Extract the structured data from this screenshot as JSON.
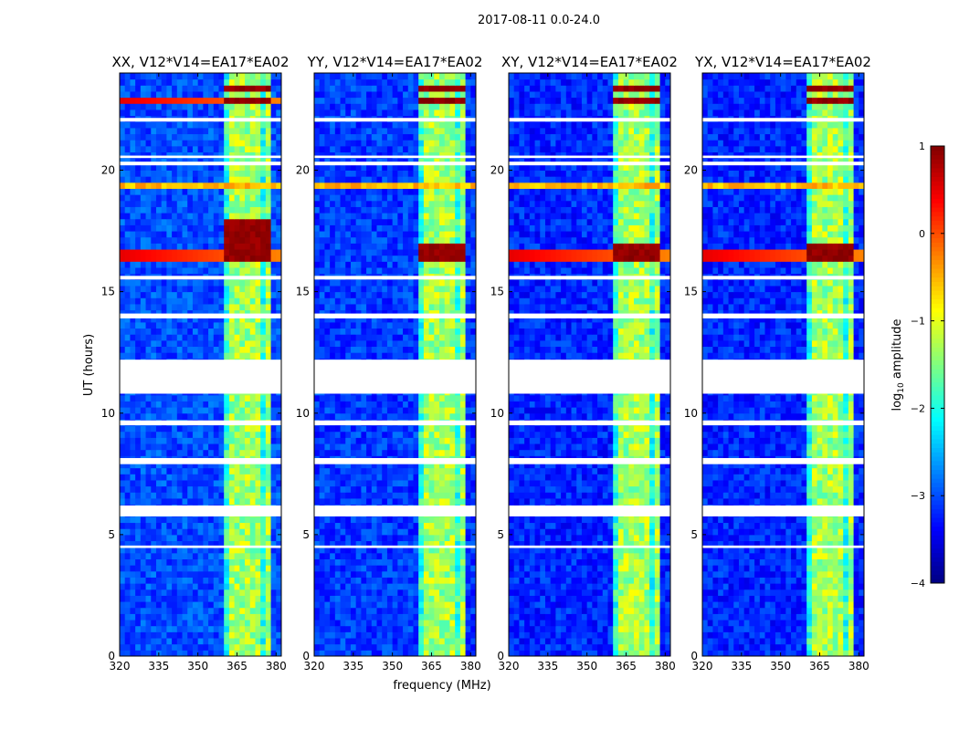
{
  "suptitle": "2017-08-11 0.0-24.0",
  "ylabel": "UT (hours)",
  "xlabel": "frequency (MHz)",
  "colorbar": {
    "label": "log",
    "label_sub": "10",
    "label_rest": " amplitude",
    "range": [
      -4,
      1
    ],
    "ticks": [
      1,
      0,
      -1,
      -2,
      -3,
      -4
    ],
    "tick_labels": [
      "1",
      "0",
      "−1",
      "−2",
      "−3",
      "−4"
    ],
    "colormap": "jet"
  },
  "chart_data": [
    {
      "type": "heatmap",
      "title": "XX, V12*V14=EA17*EA02",
      "xlim": [
        320,
        382
      ],
      "ylim": [
        0,
        24
      ],
      "x_ticks": [
        320,
        335,
        350,
        365,
        380
      ],
      "x_tick_labels": [
        "320",
        "335",
        "350",
        "365",
        "380"
      ],
      "y_ticks": [
        0,
        5,
        10,
        15,
        20
      ],
      "y_tick_labels": [
        "0",
        "5",
        "10",
        "15",
        "20"
      ],
      "strong_rfi_bands_hours": [
        [
          16.2,
          16.9
        ],
        [
          22.7,
          23.1
        ],
        [
          23.3,
          23.6
        ],
        [
          17.0,
          18.1
        ]
      ],
      "broadband_lines_hours": [
        16.5,
        22.85
      ],
      "baseline_log_amp": -3.0,
      "band_log_amp": -1.5
    },
    {
      "type": "heatmap",
      "title": "YY, V12*V14=EA17*EA02",
      "xlim": [
        320,
        382
      ],
      "ylim": [
        0,
        24
      ],
      "x_ticks": [
        320,
        335,
        350,
        365,
        380
      ],
      "x_tick_labels": [
        "320",
        "335",
        "350",
        "365",
        "380"
      ],
      "y_ticks": [
        0,
        5,
        10,
        15,
        20
      ],
      "y_tick_labels": [
        "0",
        "5",
        "10",
        "15",
        "20"
      ],
      "strong_rfi_bands_hours": [
        [
          16.2,
          16.9
        ],
        [
          22.7,
          23.1
        ],
        [
          23.3,
          23.6
        ]
      ],
      "broadband_lines_hours": [],
      "baseline_log_amp": -3.1,
      "band_log_amp": -1.5
    },
    {
      "type": "heatmap",
      "title": "XY, V12*V14=EA17*EA02",
      "xlim": [
        320,
        382
      ],
      "ylim": [
        0,
        24
      ],
      "x_ticks": [
        320,
        335,
        350,
        365,
        380
      ],
      "x_tick_labels": [
        "320",
        "335",
        "350",
        "365",
        "380"
      ],
      "y_ticks": [
        0,
        5,
        10,
        15,
        20
      ],
      "y_tick_labels": [
        "0",
        "5",
        "10",
        "15",
        "20"
      ],
      "strong_rfi_bands_hours": [
        [
          16.2,
          16.9
        ],
        [
          22.7,
          23.1
        ],
        [
          23.3,
          23.6
        ]
      ],
      "broadband_lines_hours": [
        16.5
      ],
      "baseline_log_amp": -3.2,
      "band_log_amp": -1.5
    },
    {
      "type": "heatmap",
      "title": "YX, V12*V14=EA17*EA02",
      "xlim": [
        320,
        382
      ],
      "ylim": [
        0,
        24
      ],
      "x_ticks": [
        320,
        335,
        350,
        365,
        380
      ],
      "x_tick_labels": [
        "320",
        "335",
        "350",
        "365",
        "380"
      ],
      "y_ticks": [
        0,
        5,
        10,
        15,
        20
      ],
      "y_tick_labels": [
        "0",
        "5",
        "10",
        "15",
        "20"
      ],
      "strong_rfi_bands_hours": [
        [
          16.2,
          16.9
        ],
        [
          22.7,
          23.1
        ],
        [
          23.3,
          23.6
        ]
      ],
      "broadband_lines_hours": [
        16.5
      ],
      "baseline_log_amp": -3.2,
      "band_log_amp": -1.5
    }
  ],
  "flagged_gaps_hours": [
    [
      10.8,
      12.2
    ],
    [
      4.45,
      4.55
    ],
    [
      5.75,
      6.2
    ],
    [
      7.9,
      8.15
    ],
    [
      9.5,
      9.7
    ],
    [
      13.9,
      14.1
    ],
    [
      15.5,
      15.65
    ],
    [
      20.2,
      20.35
    ],
    [
      20.5,
      20.6
    ],
    [
      22.0,
      22.15
    ]
  ],
  "rfi_event_hours": [
    19.35
  ]
}
